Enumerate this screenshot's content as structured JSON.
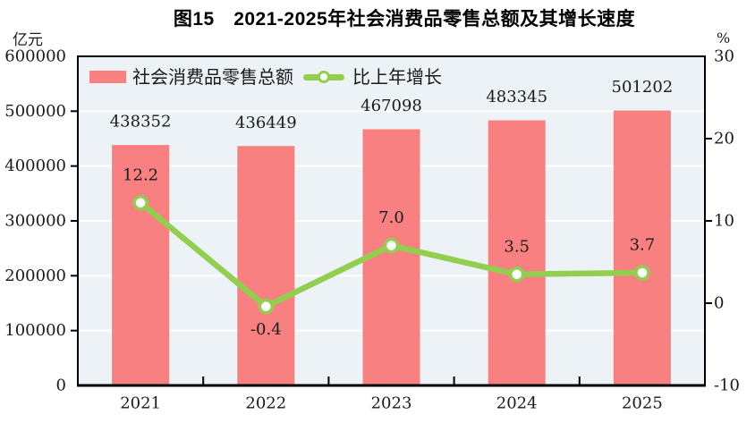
{
  "title": "图15　2021-2025年社会消费品零售总额及其增长速度",
  "axes": {
    "left_unit": "亿元",
    "right_unit": "%"
  },
  "legend": [
    {
      "label": "社会消费品零售总额",
      "series_type": "bar"
    },
    {
      "label": "比上年增长",
      "series_type": "line"
    }
  ],
  "colors": {
    "bar": "#F98080",
    "line": "#92CE50",
    "marker_fill": "#FFFFFF",
    "plot_background": "#ECF2F6",
    "gridline": "#FFFFFF",
    "axis_line": "#000000",
    "label_text": "#1A1A1A",
    "title_text": "#000000"
  },
  "chart_data": {
    "type": "bar",
    "subtype": "combo bar + line, dual axis",
    "title": "图15　2021-2025年社会消费品零售总额及其增长速度",
    "categories": [
      "2021",
      "2022",
      "2023",
      "2024",
      "2025"
    ],
    "series": [
      {
        "name": "社会消费品零售总额",
        "type": "bar",
        "axis": "left",
        "unit": "亿元",
        "values": [
          438352,
          436449,
          467098,
          483345,
          501202
        ],
        "labels": [
          "438352",
          "436449",
          "467098",
          "483345",
          "501202"
        ]
      },
      {
        "name": "比上年增长",
        "type": "line",
        "axis": "right",
        "unit": "%",
        "values": [
          12.2,
          -0.4,
          7.0,
          3.5,
          3.7
        ],
        "labels": [
          "12.2",
          "-0.4",
          "7.0",
          "3.5",
          "3.7"
        ],
        "label_positions": [
          "above",
          "below",
          "above",
          "above",
          "above"
        ]
      }
    ],
    "left_axis": {
      "unit": "亿元",
      "min": 0,
      "max": 600000,
      "step": 100000,
      "tick_labels": [
        "0",
        "100000",
        "200000",
        "300000",
        "400000",
        "500000",
        "600000"
      ]
    },
    "right_axis": {
      "unit": "%",
      "min": -10,
      "max": 30,
      "step": 10,
      "tick_labels": [
        "-10",
        "0",
        "10",
        "20",
        "30"
      ]
    },
    "grid": "horizontal white gridlines at each left-axis step",
    "legend_position": "top-left inside plot area"
  }
}
